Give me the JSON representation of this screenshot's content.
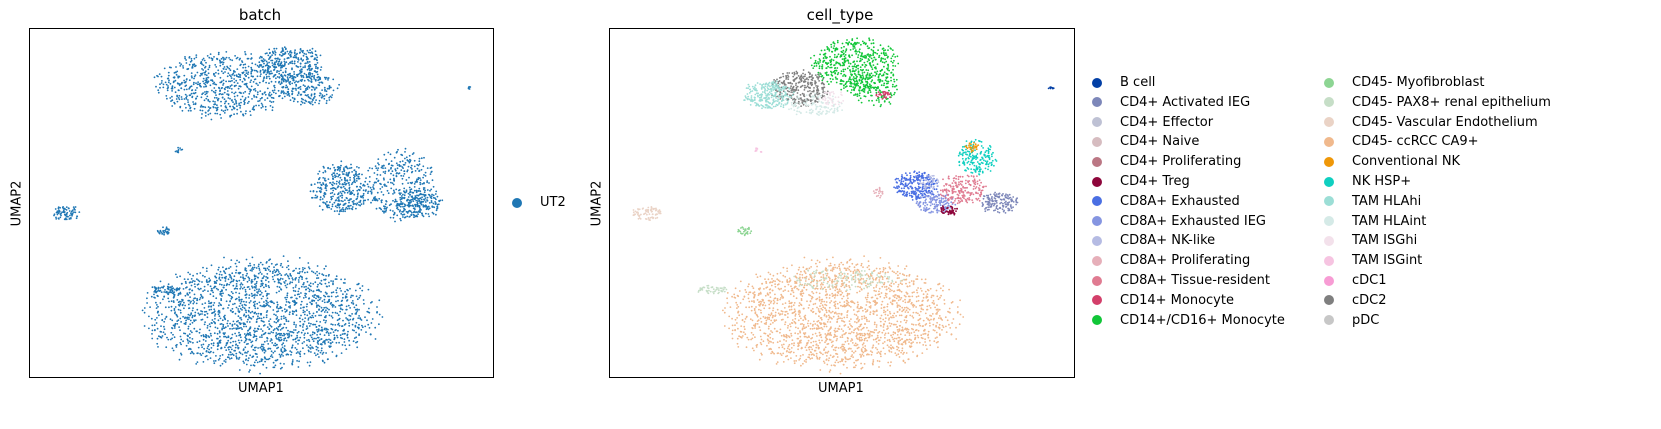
{
  "chart_data": [
    {
      "type": "scatter",
      "title": "batch",
      "xlabel": "UMAP1",
      "ylabel": "UMAP2",
      "legend_position": "right",
      "series": [
        {
          "name": "UT2",
          "color": "#1f77b4"
        }
      ],
      "clusters": [
        {
          "series": "UT2",
          "cx": 0.5,
          "cy": 0.82,
          "rx": 0.24,
          "ry": 0.15,
          "density": 1900
        },
        {
          "series": "UT2",
          "cx": 0.42,
          "cy": 0.16,
          "rx": 0.14,
          "ry": 0.09,
          "density": 700
        },
        {
          "series": "UT2",
          "cx": 0.56,
          "cy": 0.1,
          "rx": 0.07,
          "ry": 0.05,
          "density": 300
        },
        {
          "series": "UT2",
          "cx": 0.6,
          "cy": 0.17,
          "rx": 0.06,
          "ry": 0.05,
          "density": 200
        },
        {
          "series": "UT2",
          "cx": 0.67,
          "cy": 0.46,
          "rx": 0.06,
          "ry": 0.07,
          "density": 350
        },
        {
          "series": "UT2",
          "cx": 0.8,
          "cy": 0.45,
          "rx": 0.07,
          "ry": 0.1,
          "density": 350
        },
        {
          "series": "UT2",
          "cx": 0.84,
          "cy": 0.5,
          "rx": 0.05,
          "ry": 0.04,
          "density": 180
        },
        {
          "series": "UT2",
          "cx": 0.08,
          "cy": 0.53,
          "rx": 0.03,
          "ry": 0.02,
          "density": 80
        },
        {
          "series": "UT2",
          "cx": 0.29,
          "cy": 0.75,
          "rx": 0.03,
          "ry": 0.012,
          "density": 50
        },
        {
          "series": "UT2",
          "cx": 0.29,
          "cy": 0.58,
          "rx": 0.015,
          "ry": 0.012,
          "density": 30
        },
        {
          "series": "UT2",
          "cx": 0.32,
          "cy": 0.35,
          "rx": 0.01,
          "ry": 0.01,
          "density": 10
        },
        {
          "series": "UT2",
          "cx": 0.95,
          "cy": 0.17,
          "rx": 0.006,
          "ry": 0.004,
          "density": 8
        }
      ]
    },
    {
      "type": "scatter",
      "title": "cell_type",
      "xlabel": "UMAP1",
      "ylabel": "UMAP2",
      "legend_position": "right",
      "series": [
        {
          "name": "B cell",
          "color": "#023fa5"
        },
        {
          "name": "CD4+ Activated IEG",
          "color": "#7d87b9"
        },
        {
          "name": "CD4+ Effector",
          "color": "#bec1d4"
        },
        {
          "name": "CD4+ Naive",
          "color": "#d6bcc0"
        },
        {
          "name": "CD4+ Proliferating",
          "color": "#bb7784"
        },
        {
          "name": "CD4+ Treg",
          "color": "#8e063b"
        },
        {
          "name": "CD8A+ Exhausted",
          "color": "#4a6fe3"
        },
        {
          "name": "CD8A+ Exhausted IEG",
          "color": "#8595e1"
        },
        {
          "name": "CD8A+ NK-like",
          "color": "#b5bbe3"
        },
        {
          "name": "CD8A+ Proliferating",
          "color": "#e6afb9"
        },
        {
          "name": "CD8A+ Tissue-resident",
          "color": "#e07b91"
        },
        {
          "name": "CD14+ Monocyte",
          "color": "#d33f6a"
        },
        {
          "name": "CD14+/CD16+ Monocyte",
          "color": "#11c638"
        },
        {
          "name": "CD45- Myofibroblast",
          "color": "#8dd593"
        },
        {
          "name": "CD45- PAX8+ renal epithelium",
          "color": "#c6dec7"
        },
        {
          "name": "CD45- Vascular Endothelium",
          "color": "#ead3c6"
        },
        {
          "name": "CD45- ccRCC CA9+",
          "color": "#f0b98d"
        },
        {
          "name": "Conventional NK",
          "color": "#ef9708"
        },
        {
          "name": "NK HSP+",
          "color": "#0fcfc0"
        },
        {
          "name": "TAM HLAhi",
          "color": "#9cded6"
        },
        {
          "name": "TAM HLAint",
          "color": "#d5eae7"
        },
        {
          "name": "TAM ISGhi",
          "color": "#f3e1eb"
        },
        {
          "name": "TAM ISGint",
          "color": "#f6c4e1"
        },
        {
          "name": "cDC1",
          "color": "#f79cd4"
        },
        {
          "name": "cDC2",
          "color": "#7f7f7f"
        },
        {
          "name": "pDC",
          "color": "#c7c7c7"
        }
      ],
      "clusters": [
        {
          "series": "CD45- ccRCC CA9+",
          "cx": 0.5,
          "cy": 0.82,
          "rx": 0.24,
          "ry": 0.15,
          "density": 1900
        },
        {
          "series": "CD45- PAX8+ renal epithelium",
          "cx": 0.5,
          "cy": 0.72,
          "rx": 0.12,
          "ry": 0.03,
          "density": 120
        },
        {
          "series": "CD14+/CD16+ Monocyte",
          "cx": 0.53,
          "cy": 0.1,
          "rx": 0.09,
          "ry": 0.07,
          "density": 500
        },
        {
          "series": "CD14+/CD16+ Monocyte",
          "cx": 0.57,
          "cy": 0.17,
          "rx": 0.05,
          "ry": 0.05,
          "density": 150
        },
        {
          "series": "cDC2",
          "cx": 0.41,
          "cy": 0.17,
          "rx": 0.06,
          "ry": 0.05,
          "density": 300
        },
        {
          "series": "TAM HLAhi",
          "cx": 0.34,
          "cy": 0.19,
          "rx": 0.05,
          "ry": 0.04,
          "density": 250
        },
        {
          "series": "TAM HLAint",
          "cx": 0.44,
          "cy": 0.22,
          "rx": 0.06,
          "ry": 0.03,
          "density": 120
        },
        {
          "series": "TAM ISGhi",
          "cx": 0.48,
          "cy": 0.2,
          "rx": 0.03,
          "ry": 0.02,
          "density": 40
        },
        {
          "series": "CD14+ Monocyte",
          "cx": 0.59,
          "cy": 0.19,
          "rx": 0.015,
          "ry": 0.012,
          "density": 30
        },
        {
          "series": "CD8A+ Exhausted",
          "cx": 0.66,
          "cy": 0.45,
          "rx": 0.045,
          "ry": 0.04,
          "density": 260
        },
        {
          "series": "CD8A+ Exhausted IEG",
          "cx": 0.7,
          "cy": 0.5,
          "rx": 0.04,
          "ry": 0.03,
          "density": 150
        },
        {
          "series": "CD8A+ Tissue-resident",
          "cx": 0.76,
          "cy": 0.46,
          "rx": 0.05,
          "ry": 0.04,
          "density": 200
        },
        {
          "series": "CD4+ Activated IEG",
          "cx": 0.84,
          "cy": 0.5,
          "rx": 0.04,
          "ry": 0.03,
          "density": 150
        },
        {
          "series": "CD4+ Treg",
          "cx": 0.73,
          "cy": 0.52,
          "rx": 0.02,
          "ry": 0.015,
          "density": 50
        },
        {
          "series": "NK HSP+",
          "cx": 0.79,
          "cy": 0.37,
          "rx": 0.04,
          "ry": 0.05,
          "density": 180
        },
        {
          "series": "Conventional NK",
          "cx": 0.78,
          "cy": 0.34,
          "rx": 0.015,
          "ry": 0.015,
          "density": 25
        },
        {
          "series": "CD8A+ Proliferating",
          "cx": 0.58,
          "cy": 0.47,
          "rx": 0.012,
          "ry": 0.015,
          "density": 20
        },
        {
          "series": "CD8A+ NK-like",
          "cx": 0.69,
          "cy": 0.44,
          "rx": 0.02,
          "ry": 0.02,
          "density": 40
        },
        {
          "series": "CD45- Vascular Endothelium",
          "cx": 0.08,
          "cy": 0.53,
          "rx": 0.03,
          "ry": 0.02,
          "density": 80
        },
        {
          "series": "CD45- PAX8+ renal epithelium",
          "cx": 0.22,
          "cy": 0.75,
          "rx": 0.03,
          "ry": 0.012,
          "density": 50
        },
        {
          "series": "CD45- Myofibroblast",
          "cx": 0.29,
          "cy": 0.58,
          "rx": 0.015,
          "ry": 0.012,
          "density": 30
        },
        {
          "series": "TAM ISGint",
          "cx": 0.32,
          "cy": 0.35,
          "rx": 0.01,
          "ry": 0.01,
          "density": 10
        },
        {
          "series": "B cell",
          "cx": 0.95,
          "cy": 0.17,
          "rx": 0.006,
          "ry": 0.004,
          "density": 8
        }
      ]
    }
  ]
}
